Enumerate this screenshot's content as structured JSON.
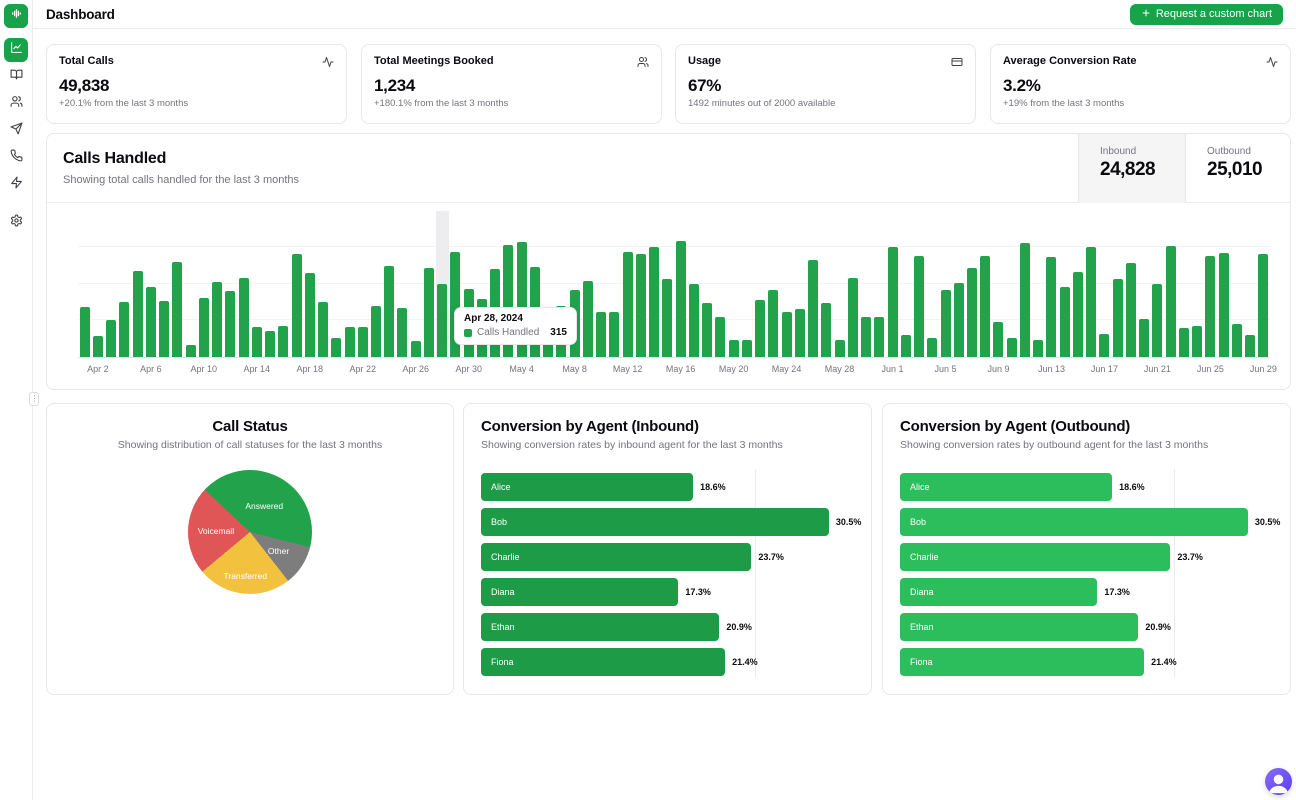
{
  "app": {
    "title": "Dashboard",
    "request_button": "Request a custom chart"
  },
  "sidebar": {
    "logo_icon": "waveform-icon",
    "items": [
      {
        "icon": "line-chart-icon",
        "active": true
      },
      {
        "icon": "book-open-icon",
        "active": false
      },
      {
        "icon": "users-icon",
        "active": false
      },
      {
        "icon": "send-icon",
        "active": false
      },
      {
        "icon": "phone-icon",
        "active": false
      },
      {
        "icon": "zap-icon",
        "active": false
      },
      {
        "icon": "settings-icon",
        "active": false
      }
    ]
  },
  "stat_cards": [
    {
      "title": "Total Calls",
      "value": "49,838",
      "sub": "+20.1% from the last 3 months",
      "icon": "activity-icon"
    },
    {
      "title": "Total Meetings Booked",
      "value": "1,234",
      "sub": "+180.1% from the last 3 months",
      "icon": "users-icon"
    },
    {
      "title": "Usage",
      "value": "67%",
      "sub": "1492 minutes out of 2000 available",
      "icon": "credit-card-icon"
    },
    {
      "title": "Average Conversion Rate",
      "value": "3.2%",
      "sub": "+19% from the last 3 months",
      "icon": "activity-icon"
    }
  ],
  "calls_card": {
    "title": "Calls Handled",
    "subtitle": "Showing total calls handled for the last 3 months",
    "tabs": [
      {
        "label": "Inbound",
        "value": "24,828",
        "selected": true
      },
      {
        "label": "Outbound",
        "value": "25,010",
        "selected": false
      }
    ]
  },
  "chart_data": [
    {
      "type": "bar",
      "title": "Calls Handled",
      "x_start": "Apr 1, 2024",
      "x_end": "Jun 29, 2024",
      "bar_color": "#21a24b",
      "ylim": [
        0,
        630
      ],
      "grid": "horizontal-faint",
      "tick_start_index": 1,
      "tick_step": 4,
      "tick_labels": [
        "Apr 2",
        "Apr 6",
        "Apr 10",
        "Apr 14",
        "Apr 18",
        "Apr 22",
        "Apr 26",
        "Apr 30",
        "May 4",
        "May 8",
        "May 12",
        "May 16",
        "May 20",
        "May 24",
        "May 28",
        "Jun 1",
        "Jun 5",
        "Jun 9",
        "Jun 13",
        "Jun 17",
        "Jun 21",
        "Jun 25",
        "Jun 29"
      ],
      "values": [
        215,
        90,
        160,
        237,
        370,
        298,
        240,
        408,
        52,
        254,
        322,
        284,
        340,
        130,
        112,
        133,
        443,
        360,
        237,
        82,
        130,
        130,
        220,
        388,
        210,
        70,
        383,
        315,
        452,
        290,
        247,
        376,
        481,
        495,
        385,
        143,
        220,
        287,
        327,
        191,
        191,
        448,
        440,
        471,
        335,
        496,
        312,
        230,
        170,
        75,
        75,
        244,
        287,
        194,
        205,
        417,
        230,
        72,
        338,
        170,
        170,
        470,
        96,
        435,
        82,
        287,
        316,
        380,
        434,
        148,
        82,
        488,
        72,
        427,
        302,
        366,
        471,
        100,
        335,
        402,
        162,
        312,
        474,
        125,
        134,
        431,
        446,
        141,
        94,
        443
      ],
      "highlight_index": 27,
      "tooltip": {
        "date": "Apr 28, 2024",
        "series": "Calls Handled",
        "value": "315"
      }
    },
    {
      "type": "pie",
      "title": "Call Status",
      "subtitle": "Showing distribution of call statuses for the last 3 months",
      "start_angle": -47,
      "segments": [
        {
          "label": "Answered",
          "pct": 42,
          "color": "#21a24b"
        },
        {
          "label": "Other",
          "pct": 10.5,
          "color": "#7d7d7d"
        },
        {
          "label": "Transferred",
          "pct": 24.5,
          "color": "#f2c23e"
        },
        {
          "label": "Voicemail",
          "pct": 23,
          "color": "#e05555"
        }
      ]
    },
    {
      "type": "bar-horizontal",
      "title": "Conversion by Agent (Inbound)",
      "subtitle": "Showing conversion rates by inbound agent for the last 3 months",
      "categories": [
        "Alice",
        "Bob",
        "Charlie",
        "Diana",
        "Ethan",
        "Fiona"
      ],
      "values": [
        18.6,
        30.5,
        23.7,
        17.3,
        20.9,
        21.4
      ],
      "unit": "%",
      "xlim": [
        0,
        32
      ],
      "bar_color": "#1e9b47"
    },
    {
      "type": "bar-horizontal",
      "title": "Conversion by Agent (Outbound)",
      "subtitle": "Showing conversion rates by outbound agent for the last 3 months",
      "categories": [
        "Alice",
        "Bob",
        "Charlie",
        "Diana",
        "Ethan",
        "Fiona"
      ],
      "values": [
        18.6,
        30.5,
        23.7,
        17.3,
        20.9,
        21.4
      ],
      "unit": "%",
      "xlim": [
        0,
        32
      ],
      "bar_color": "#2cbd5c"
    }
  ],
  "colors": {
    "primary_green": "#16a34a",
    "calls_bar": "#21a24b",
    "inbound_bar": "#1e9b47",
    "outbound_bar": "#2cbd5c",
    "pie_answered": "#21a24b",
    "pie_other": "#7d7d7d",
    "pie_transferred": "#f2c23e",
    "pie_voicemail": "#e05555",
    "chat_purple": "#6d4df7"
  },
  "chat_widget": {
    "icon": "chat-avatar-icon"
  }
}
